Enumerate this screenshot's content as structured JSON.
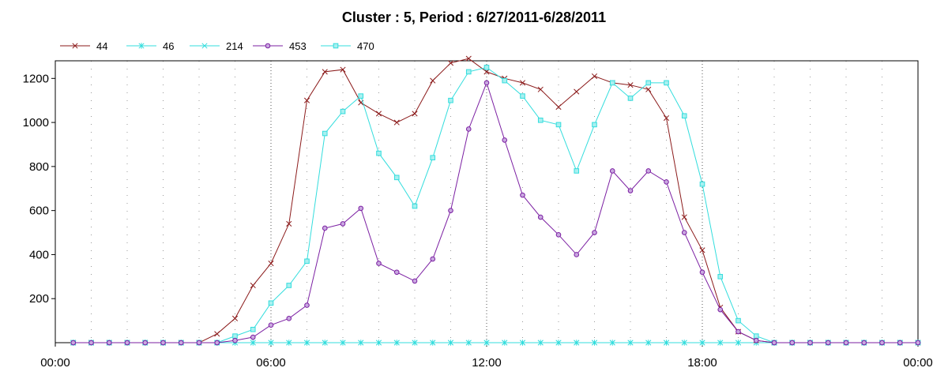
{
  "chart_data": {
    "type": "line",
    "title": "Cluster : 5, Period : 6/27/2011-6/28/2011",
    "xlabel": "",
    "ylabel": "",
    "x_tick_labels": [
      "00:00",
      "06:00",
      "12:00",
      "18:00",
      "00:00"
    ],
    "y_ticks": [
      200,
      400,
      600,
      800,
      1000,
      1200
    ],
    "xlim": [
      0,
      24
    ],
    "ylim": [
      0,
      1280
    ],
    "grid": true,
    "legend_position": "top-left",
    "x": [
      0.5,
      1,
      1.5,
      2,
      2.5,
      3,
      3.5,
      4,
      4.5,
      5,
      5.5,
      6,
      6.5,
      7,
      7.5,
      8,
      8.5,
      9,
      9.5,
      10,
      10.5,
      11,
      11.5,
      12,
      12.5,
      13,
      13.5,
      14,
      14.5,
      15,
      15.5,
      16,
      16.5,
      17,
      17.5,
      18,
      18.5,
      19,
      19.5,
      20,
      20.5,
      21,
      21.5,
      22,
      22.5,
      23,
      23.5,
      24
    ],
    "series": [
      {
        "name": "44",
        "color": "#8b1a1a",
        "marker": "x",
        "values": [
          0,
          0,
          0,
          0,
          0,
          0,
          0,
          0,
          40,
          110,
          260,
          360,
          540,
          1100,
          1230,
          1240,
          1090,
          1040,
          1000,
          1040,
          1190,
          1270,
          1290,
          1230,
          1200,
          1180,
          1150,
          1070,
          1140,
          1210,
          1180,
          1170,
          1150,
          1020,
          570,
          420,
          160,
          50,
          10,
          0,
          0,
          0,
          0,
          0,
          0,
          0,
          0,
          0
        ]
      },
      {
        "name": "46",
        "color": "#33dddd",
        "marker": "asterisk",
        "values": [
          0,
          0,
          0,
          0,
          0,
          0,
          0,
          0,
          0,
          0,
          0,
          0,
          0,
          0,
          0,
          0,
          0,
          0,
          0,
          0,
          0,
          0,
          0,
          0,
          0,
          0,
          0,
          0,
          0,
          0,
          0,
          0,
          0,
          0,
          0,
          0,
          0,
          0,
          0,
          0,
          0,
          0,
          0,
          0,
          0,
          0,
          0,
          0
        ]
      },
      {
        "name": "214",
        "color": "#33dddd",
        "marker": "x",
        "values": [
          0,
          0,
          0,
          0,
          0,
          0,
          0,
          0,
          0,
          0,
          0,
          0,
          0,
          0,
          0,
          0,
          0,
          0,
          0,
          0,
          0,
          0,
          0,
          0,
          0,
          0,
          0,
          0,
          0,
          0,
          0,
          0,
          0,
          0,
          0,
          0,
          0,
          0,
          0,
          0,
          0,
          0,
          0,
          0,
          0,
          0,
          0,
          0
        ]
      },
      {
        "name": "453",
        "color": "#7b1fa2",
        "marker": "circle",
        "values": [
          0,
          0,
          0,
          0,
          0,
          0,
          0,
          0,
          0,
          10,
          25,
          80,
          110,
          170,
          520,
          540,
          610,
          360,
          320,
          280,
          380,
          600,
          970,
          1180,
          920,
          670,
          570,
          490,
          400,
          500,
          780,
          690,
          780,
          730,
          500,
          320,
          150,
          50,
          10,
          0,
          0,
          0,
          0,
          0,
          0,
          0,
          0,
          0
        ]
      },
      {
        "name": "470",
        "color": "#33dddd",
        "marker": "square",
        "values": [
          0,
          0,
          0,
          0,
          0,
          0,
          0,
          0,
          0,
          30,
          60,
          180,
          260,
          370,
          950,
          1050,
          1120,
          860,
          750,
          620,
          840,
          1100,
          1230,
          1250,
          1190,
          1120,
          1010,
          990,
          780,
          990,
          1180,
          1110,
          1180,
          1180,
          1030,
          720,
          300,
          100,
          30,
          0,
          0,
          0,
          0,
          0,
          0,
          0,
          0,
          0
        ]
      }
    ]
  }
}
